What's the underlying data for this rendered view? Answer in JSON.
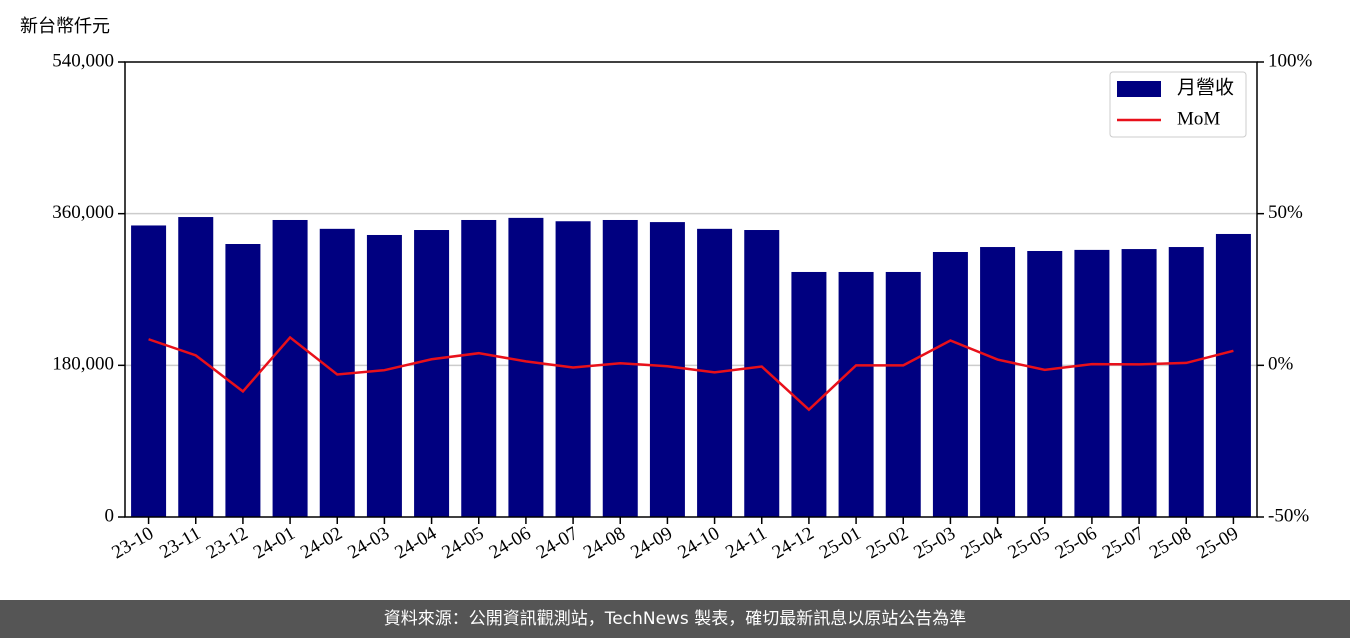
{
  "chart_data": {
    "type": "bar_line",
    "y_label": "新台幣仟元",
    "footer": "資料來源：公開資訊觀測站，TechNews 製表，確切最新訊息以原站公告為準",
    "categories": [
      "23-10",
      "23-11",
      "23-12",
      "24-01",
      "24-02",
      "24-03",
      "24-04",
      "24-05",
      "24-06",
      "24-07",
      "24-08",
      "24-09",
      "24-10",
      "24-11",
      "24-12",
      "25-01",
      "25-02",
      "25-03",
      "25-04",
      "25-05",
      "25-06",
      "25-07",
      "25-08",
      "25-09"
    ],
    "series": [
      {
        "name": "月營收",
        "color": "#000080",
        "values": [
          346000,
          356000,
          324000,
          352500,
          342000,
          334700,
          340600,
          352500,
          355000,
          351000,
          352500,
          350000,
          342000,
          340600,
          290800,
          290800,
          290800,
          314500,
          320400,
          315700,
          317000,
          318000,
          320400,
          335900
        ]
      },
      {
        "name": "MoM",
        "color": "#e8101a",
        "axis": "y2",
        "values": [
          8.6,
          3.3,
          -8.6,
          9.2,
          -3.0,
          -1.6,
          2.0,
          4.0,
          1.3,
          -0.7,
          0.7,
          -0.3,
          -2.3,
          -0.4,
          -14.6,
          0,
          0,
          8.2,
          1.9,
          -1.5,
          0.4,
          0.3,
          0.8,
          4.8
        ]
      }
    ],
    "ylim": [
      0,
      540000
    ],
    "yticks": [
      0,
      {
        "value": 180000,
        "label": "180,000"
      },
      {
        "value": 360000,
        "label": "360,000"
      },
      {
        "value": 540000,
        "label": "540,000"
      }
    ],
    "y2lim": [
      -50,
      100
    ],
    "y2ticks": [
      {
        "value": -50,
        "label": "-50%"
      },
      {
        "value": 0,
        "label": "0%"
      },
      {
        "value": 50,
        "label": "50%"
      },
      {
        "value": 100,
        "label": "100%"
      }
    ],
    "grid": true,
    "legend": "upper right"
  }
}
